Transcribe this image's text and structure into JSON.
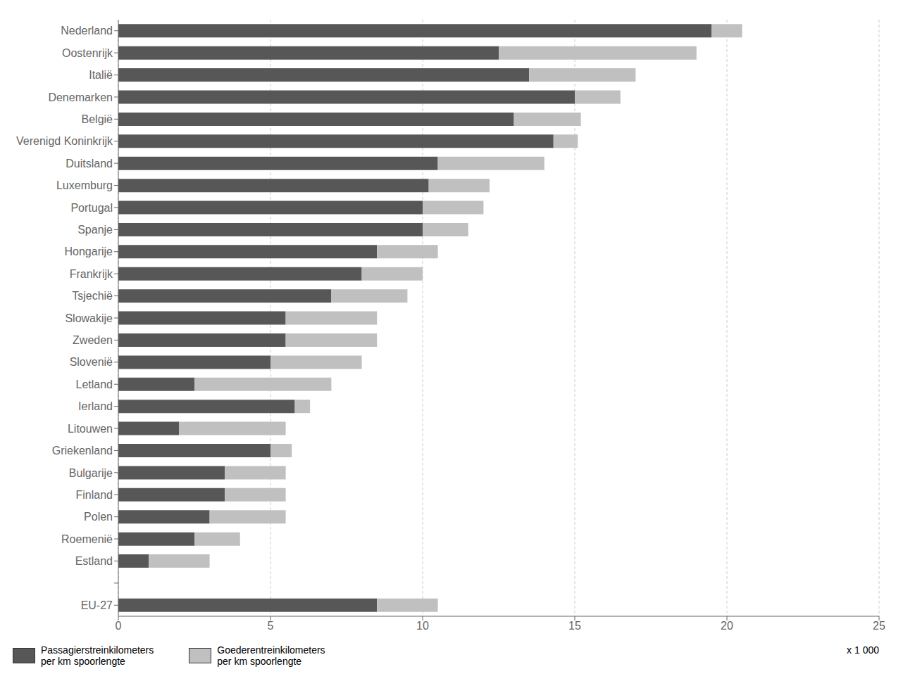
{
  "chart_data": {
    "type": "bar",
    "orientation": "horizontal",
    "stacked": true,
    "categories": [
      "Nederland",
      "Oostenrijk",
      "Italië",
      "Denemarken",
      "België",
      "Verenigd Koninkrijk",
      "Duitsland",
      "Luxemburg",
      "Portugal",
      "Spanje",
      "Hongarije",
      "Frankrijk",
      "Tsjechië",
      "Slowakije",
      "Zweden",
      "Slovenië",
      "Letland",
      "Ierland",
      "Litouwen",
      "Griekenland",
      "Bulgarije",
      "Finland",
      "Polen",
      "Roemenië",
      "Estland",
      null,
      "EU-27"
    ],
    "series": [
      {
        "name": "Passagierstreinkilometers\nper km spoorlengte",
        "color": "#575757",
        "values": [
          19.5,
          12.5,
          13.5,
          15.0,
          13.0,
          14.3,
          10.5,
          10.2,
          10.0,
          10.0,
          8.5,
          8.0,
          7.0,
          5.5,
          5.5,
          5.0,
          2.5,
          5.8,
          2.0,
          5.0,
          3.5,
          3.5,
          3.0,
          2.5,
          1.0,
          0.0,
          8.5
        ]
      },
      {
        "name": "Goederentreinkilometers\nper km spoorlengte",
        "color": "#c0c0c0",
        "values": [
          1.0,
          6.5,
          3.5,
          1.5,
          2.2,
          0.8,
          3.5,
          2.0,
          2.0,
          1.5,
          2.0,
          2.0,
          2.5,
          3.0,
          3.0,
          3.0,
          4.5,
          0.5,
          3.5,
          0.7,
          2.0,
          2.0,
          2.5,
          1.5,
          2.0,
          0.0,
          2.0
        ]
      }
    ],
    "xlim": [
      0,
      25
    ],
    "xticks": [
      0,
      5,
      10,
      15,
      20,
      25
    ],
    "grid": true,
    "legend": "bottom",
    "annotation": "x 1 000"
  }
}
